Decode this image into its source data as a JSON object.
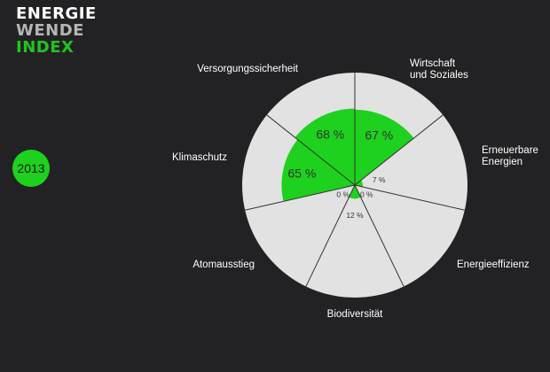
{
  "logo": {
    "line1": "ENERGIE",
    "line2": "WENDE",
    "line3": "INDEX"
  },
  "year_badge": {
    "label": "2013"
  },
  "colors": {
    "background": "#222224",
    "segment_bg": "#e2e2e2",
    "fill": "#1ed11e",
    "divider": "#333333"
  },
  "chart_data": {
    "type": "polar-area",
    "title": "",
    "value_unit": "%",
    "max": 100,
    "categories": [
      {
        "name": [
          "Wirtschaft",
          "und Soziales"
        ],
        "value": 67,
        "value_label": "67 %"
      },
      {
        "name": [
          "Erneuerbare",
          "Energien"
        ],
        "value": 7,
        "value_label": "7 %"
      },
      {
        "name": [
          "Energieeffizienz"
        ],
        "value": 0,
        "value_label": "0 %"
      },
      {
        "name": [
          "Biodiversität"
        ],
        "value": 12,
        "value_label": "12 %"
      },
      {
        "name": [
          "Atomausstieg"
        ],
        "value": 0,
        "value_label": "0 %"
      },
      {
        "name": [
          "Klimaschutz"
        ],
        "value": 65,
        "value_label": "65 %"
      },
      {
        "name": [
          "Versorgungssicherheit"
        ],
        "value": 68,
        "value_label": "68 %"
      }
    ]
  }
}
